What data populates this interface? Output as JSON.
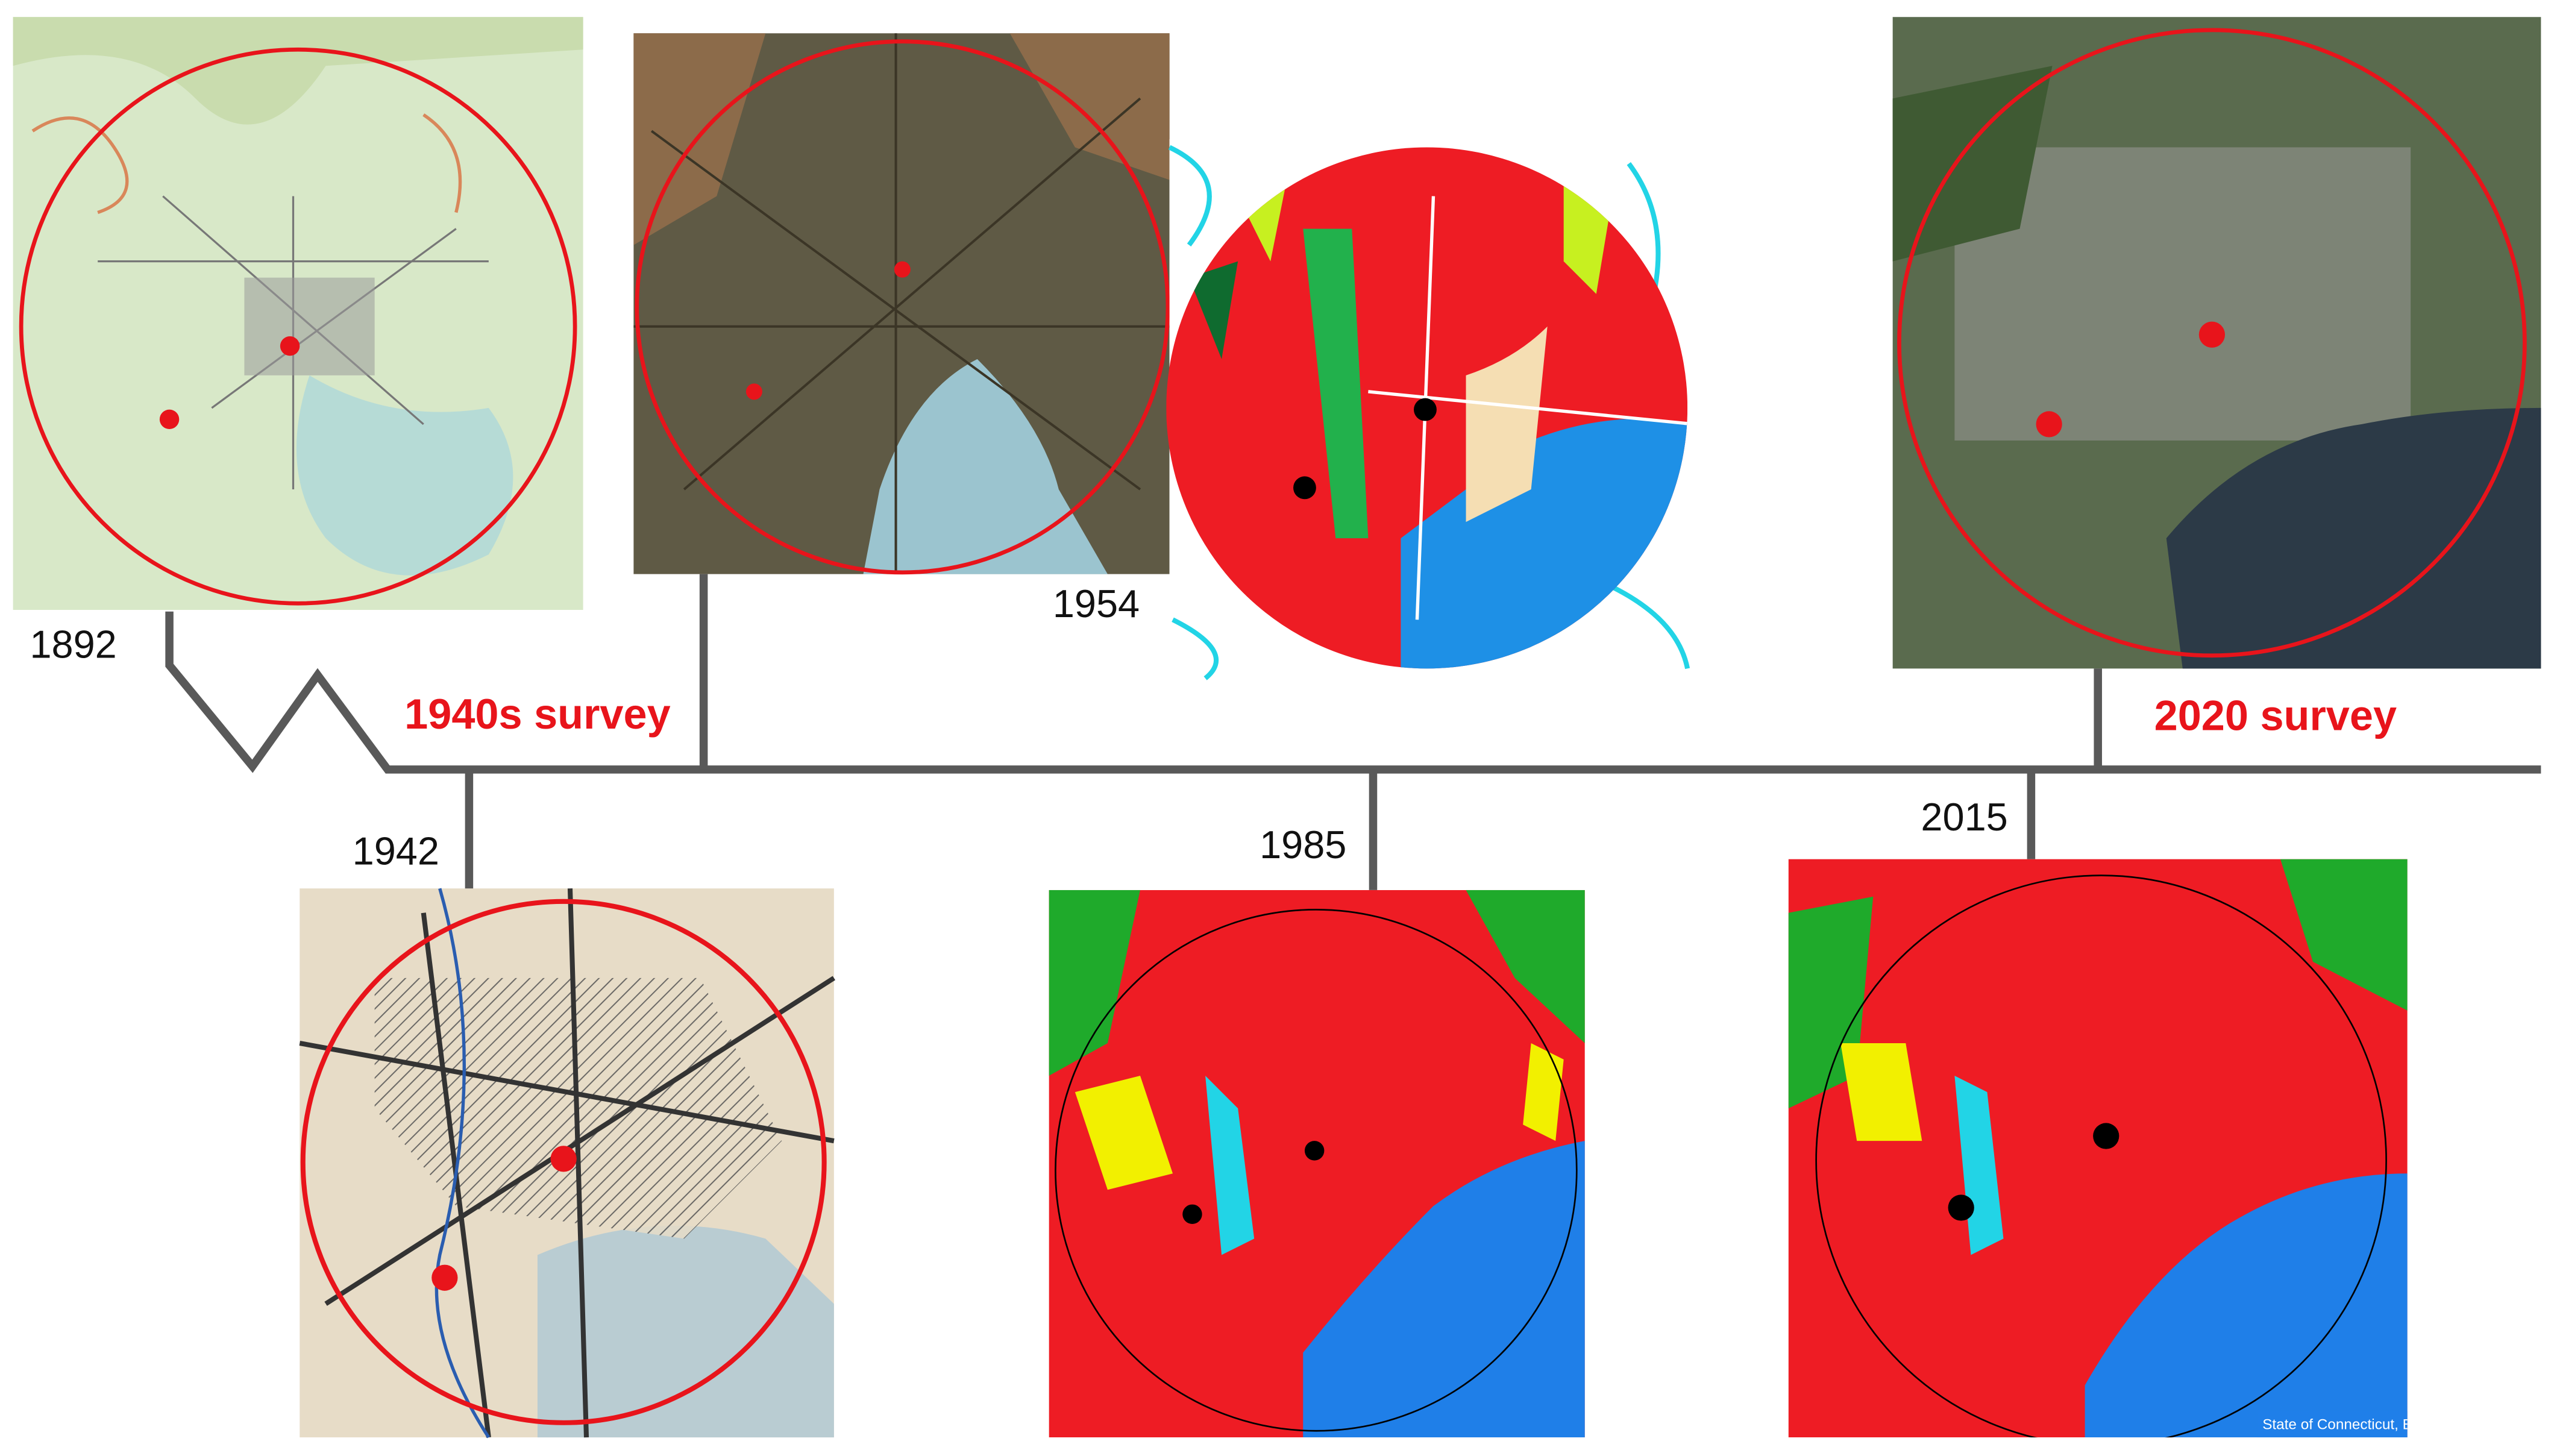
{
  "timeline": {
    "events": [
      {
        "year": "1892"
      },
      {
        "year": "1942"
      },
      {
        "year": "1954"
      },
      {
        "year": "1985"
      },
      {
        "year": "2015"
      }
    ],
    "surveys": [
      {
        "label": "1940s survey"
      },
      {
        "label": "2020 survey"
      }
    ]
  },
  "credit": "State of Connecticut, Earthst"
}
